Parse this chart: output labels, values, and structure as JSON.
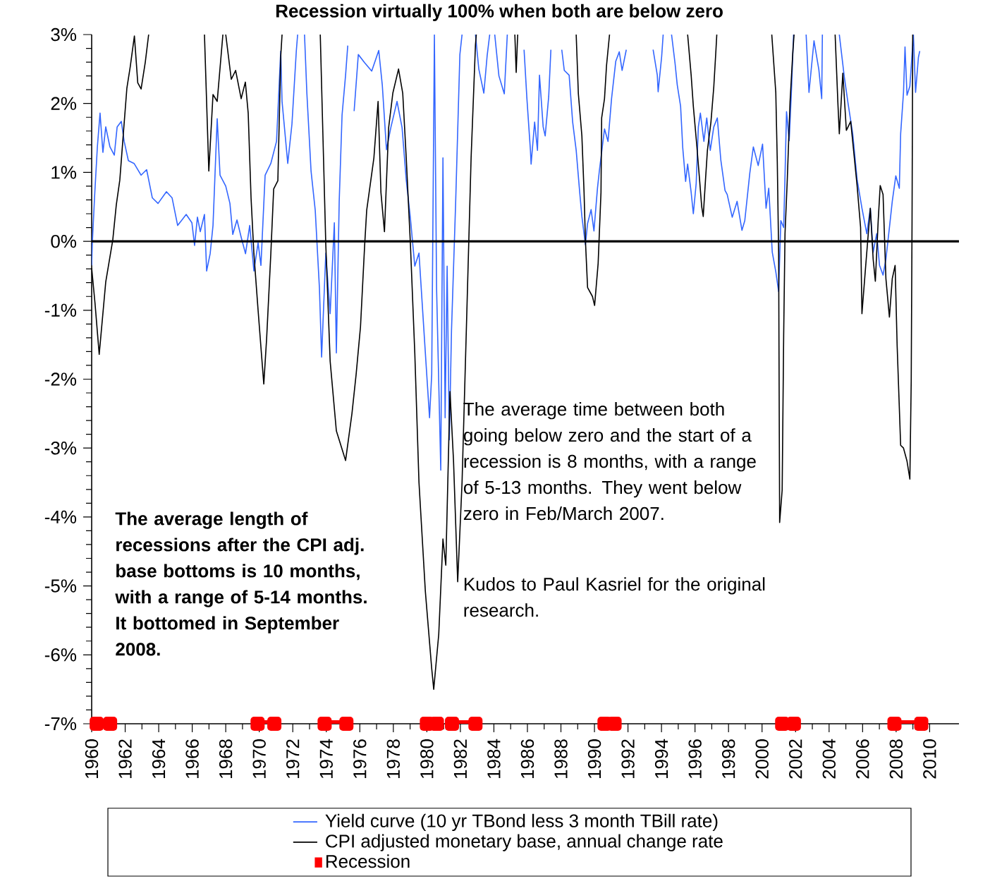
{
  "chart_data": {
    "type": "line",
    "title": "Recession virtually 100% when both are below zero",
    "xlim": [
      1960,
      2011.75
    ],
    "ylim": [
      -7,
      3
    ],
    "xticks": [
      1960,
      1962,
      1964,
      1966,
      1968,
      1970,
      1972,
      1974,
      1976,
      1978,
      1980,
      1982,
      1984,
      1986,
      1988,
      1990,
      1992,
      1994,
      1996,
      1998,
      2000,
      2002,
      2004,
      2006,
      2008,
      2010
    ],
    "yticks": [
      {
        "value": 3,
        "label": "3%"
      },
      {
        "value": 2,
        "label": "2%"
      },
      {
        "value": 1,
        "label": "1%"
      },
      {
        "value": 0,
        "label": "0%"
      },
      {
        "value": -1,
        "label": "-1%"
      },
      {
        "value": -2,
        "label": "-2%"
      },
      {
        "value": -3,
        "label": "-3%"
      },
      {
        "value": -4,
        "label": "-4%"
      },
      {
        "value": -5,
        "label": "-5%"
      },
      {
        "value": -6,
        "label": "-6%"
      },
      {
        "value": -7,
        "label": "-7%"
      }
    ],
    "legend": "bottom",
    "ref_lines": [
      {
        "axis": "y",
        "value": 0,
        "color": "#000000"
      }
    ],
    "annotations": [
      "The average length of recessions after the CPI adj. base bottoms is 10 months, with a range of 5-14 months. It bottomed in September 2008.",
      "The average time between both going below zero and the start of a recession is 8 months, with a range of 5-13 months. They went below zero in Feb/March 2007.",
      "Kudos to Paul Kasriel for the original research."
    ],
    "series": [
      {
        "name": "Yield curve (10 yr TBond less 3 month TBill rate)",
        "type": "line",
        "color": "#3366ff",
        "x": [
          1960.0,
          1960.04,
          1960.17,
          1960.34,
          1960.5,
          1960.67,
          1960.84,
          1961.09,
          1961.35,
          1961.52,
          1961.77,
          1961.94,
          1962.19,
          1962.53,
          1962.95,
          1963.28,
          1963.62,
          1963.96,
          1964.46,
          1964.8,
          1965.13,
          1965.64,
          1965.98,
          1966.14,
          1966.31,
          1966.48,
          1966.73,
          1966.86,
          1967.07,
          1967.24,
          1967.49,
          1967.66,
          1968.0,
          1968.25,
          1968.42,
          1968.67,
          1968.92,
          1969.18,
          1969.43,
          1969.68,
          1969.93,
          1970.1,
          1970.35,
          1970.69,
          1971.03,
          1971.28,
          1971.36,
          1971.7,
          1971.95,
          1972.21,
          1972.29,
          1972.5,
          1972.7,
          1972.84,
          1973.09,
          1973.34,
          1973.59,
          1973.72,
          1973.97,
          1974.23,
          1974.48,
          1974.6,
          1974.77,
          1974.94,
          1975.15,
          1975.28,
          1975.45,
          1975.66,
          1975.91,
          1976.29,
          1976.71,
          1977.13,
          1977.34,
          1977.59,
          1977.85,
          1978.22,
          1978.52,
          1978.77,
          1979.02,
          1979.28,
          1979.53,
          1979.91,
          1980.16,
          1980.29,
          1980.45,
          1980.58,
          1980.83,
          1980.96,
          1981.09,
          1981.21,
          1981.34,
          1981.47,
          1981.72,
          1981.97,
          1982.1,
          1982.5,
          1982.9,
          1983.1,
          1983.4,
          1983.6,
          1983.75,
          1983.9,
          1984.05,
          1984.3,
          1984.62,
          1984.8,
          1985.3,
          1985.8,
          1985.97,
          1986.18,
          1986.22,
          1986.43,
          1986.6,
          1986.72,
          1986.94,
          1987.06,
          1987.27,
          1987.4,
          1987.7,
          1988.05,
          1988.2,
          1988.49,
          1988.7,
          1988.91,
          1989.12,
          1989.25,
          1989.46,
          1989.59,
          1989.8,
          1989.97,
          1990.18,
          1990.3,
          1990.6,
          1990.81,
          1991.02,
          1991.27,
          1991.48,
          1991.65,
          1991.9,
          1992.7,
          1993.5,
          1993.75,
          1993.8,
          1994.01,
          1994.1,
          1994.4,
          1994.6,
          1994.81,
          1994.94,
          1995.14,
          1995.27,
          1995.44,
          1995.56,
          1995.77,
          1995.9,
          1996.07,
          1996.2,
          1996.32,
          1996.53,
          1996.7,
          1996.91,
          1997.12,
          1997.33,
          1997.54,
          1997.79,
          1997.92,
          1998.22,
          1998.51,
          1998.8,
          1998.97,
          1999.27,
          1999.48,
          1999.77,
          2000.03,
          2000.24,
          2000.4,
          2000.61,
          2000.82,
          2000.99,
          2001.12,
          2001.29,
          2001.37,
          2001.46,
          2001.62,
          2001.75,
          2001.88,
          2002.3,
          2002.63,
          2002.8,
          2003.1,
          2003.39,
          2003.56,
          2003.6,
          2004.1,
          2004.61,
          2004.9,
          2005.12,
          2005.41,
          2005.67,
          2005.96,
          2006.25,
          2006.46,
          2006.63,
          2006.84,
          2007.01,
          2007.22,
          2007.39,
          2007.6,
          2007.77,
          2007.98,
          2008.19,
          2008.27,
          2008.44,
          2008.53,
          2008.65,
          2008.82,
          2009.03,
          2009.16,
          2009.33,
          2009.41
        ],
        "values": [
          -0.35,
          -0.02,
          0.63,
          1.37,
          1.86,
          1.29,
          1.66,
          1.37,
          1.25,
          1.66,
          1.74,
          1.45,
          1.17,
          1.13,
          0.96,
          1.04,
          0.63,
          0.55,
          0.72,
          0.63,
          0.23,
          0.39,
          0.27,
          -0.06,
          0.35,
          0.14,
          0.39,
          -0.43,
          -0.18,
          0.23,
          1.78,
          0.96,
          0.8,
          0.55,
          0.1,
          0.31,
          0.06,
          -0.18,
          0.23,
          -0.43,
          -0.02,
          -0.35,
          0.96,
          1.13,
          1.45,
          2.76,
          2.03,
          1.13,
          1.7,
          2.76,
          3.0,
          null,
          3.0,
          2.15,
          1.02,
          0.45,
          -0.68,
          -1.68,
          -0.17,
          -1.05,
          0.27,
          -1.62,
          0.58,
          1.83,
          2.41,
          2.84,
          null,
          1.89,
          2.71,
          2.59,
          2.47,
          2.77,
          2.27,
          1.33,
          1.65,
          2.03,
          1.65,
          0.89,
          0.33,
          -0.36,
          -0.17,
          -1.62,
          -2.56,
          -1.93,
          3.0,
          -0.68,
          -3.32,
          1.21,
          -2.56,
          -0.36,
          -2.88,
          -1.3,
          0.58,
          2.71,
          3.0,
          null,
          3.0,
          2.5,
          2.15,
          2.7,
          3.0,
          null,
          3.0,
          2.4,
          2.14,
          3.0,
          null,
          2.78,
          2.07,
          1.32,
          1.12,
          1.73,
          1.32,
          2.41,
          1.66,
          1.53,
          2.1,
          2.78,
          null,
          2.78,
          2.48,
          2.41,
          1.73,
          1.32,
          0.71,
          0.36,
          -0.05,
          0.26,
          0.46,
          0.15,
          0.77,
          1.04,
          1.63,
          1.45,
          2.07,
          2.61,
          2.75,
          2.48,
          2.78,
          null,
          2.78,
          2.41,
          2.17,
          2.68,
          3.0,
          null,
          3.0,
          2.58,
          2.27,
          1.96,
          1.35,
          0.87,
          1.12,
          0.71,
          0.4,
          0.84,
          1.66,
          1.86,
          1.45,
          1.79,
          1.32,
          1.66,
          1.79,
          1.18,
          0.74,
          0.68,
          0.35,
          0.58,
          0.16,
          0.3,
          0.99,
          1.37,
          1.1,
          1.41,
          0.48,
          0.77,
          -0.16,
          -0.44,
          -0.73,
          0.3,
          0.2,
          0.95,
          1.88,
          1.46,
          2.16,
          3.0,
          null,
          3.0,
          2.16,
          2.91,
          2.49,
          2.07,
          3.0,
          null,
          3.0,
          2.4,
          2.02,
          1.56,
          0.9,
          0.48,
          0.11,
          0.48,
          -0.16,
          0.11,
          -0.35,
          -0.49,
          -0.26,
          0.2,
          0.58,
          0.95,
          0.77,
          1.56,
          2.16,
          2.82,
          2.12,
          2.25,
          3.0,
          2.16,
          2.67,
          2.76
        ]
      },
      {
        "name": "CPI adjusted monetary base, annual change rate",
        "type": "line",
        "color": "#000000",
        "x": [
          1960.0,
          1960.2,
          1960.45,
          1960.84,
          1961.26,
          1961.47,
          1961.68,
          1961.89,
          1962.1,
          1962.3,
          1962.55,
          1962.75,
          1962.95,
          1963.2,
          1963.4,
          1965.0,
          1966.73,
          1966.99,
          1967.24,
          1967.49,
          1967.83,
          1967.9,
          1968.0,
          1968.33,
          1968.59,
          1968.92,
          1969.17,
          1969.34,
          1969.51,
          1969.68,
          1969.93,
          1970.19,
          1970.27,
          1970.44,
          1970.69,
          1970.86,
          1971.11,
          1971.28,
          1971.36,
          1972.5,
          1973.64,
          1973.97,
          1974.23,
          1974.6,
          1975.15,
          1975.53,
          1975.78,
          1976.04,
          1976.29,
          1976.41,
          1976.84,
          1977.09,
          1977.26,
          1977.47,
          1977.72,
          1977.97,
          1978.31,
          1978.56,
          1978.77,
          1979.02,
          1979.28,
          1979.53,
          1979.91,
          1980.29,
          1980.41,
          1980.71,
          1980.96,
          1981.13,
          1981.38,
          1981.59,
          1981.84,
          1982.1,
          1982.39,
          1982.64,
          1982.9,
          1982.95,
          1984.0,
          1985.25,
          1985.33,
          1985.42,
          1987.0,
          1988.91,
          1989.04,
          1989.25,
          1989.38,
          1989.46,
          1989.59,
          1989.88,
          1990.01,
          1990.22,
          1990.39,
          1990.43,
          1990.6,
          1990.72,
          1990.9,
          1993.0,
          1995.56,
          1995.77,
          1995.9,
          1996.11,
          1996.28,
          1996.4,
          1996.49,
          1996.62,
          1996.74,
          1996.95,
          1997.12,
          1997.25,
          1997.3,
          1999.0,
          2000.58,
          2000.82,
          2000.91,
          2000.99,
          2001.03,
          2001.05,
          2001.2,
          2001.29,
          2001.37,
          2001.5,
          2001.67,
          2001.83,
          2001.91,
          2003.0,
          2004.36,
          2004.53,
          2004.61,
          2004.82,
          2005.03,
          2005.29,
          2005.67,
          2005.88,
          2005.96,
          2006.17,
          2006.46,
          2006.63,
          2006.76,
          2006.93,
          2007.05,
          2007.22,
          2007.39,
          2007.6,
          2007.77,
          2007.94,
          2008.06,
          2008.27,
          2008.44,
          2008.65,
          2008.82,
          2008.9,
          2008.95,
          2008.99
        ],
        "values": [
          -0.39,
          -0.9,
          -1.64,
          -0.59,
          0.02,
          0.53,
          0.89,
          1.56,
          2.22,
          2.53,
          2.98,
          2.3,
          2.21,
          2.6,
          3.0,
          null,
          3.0,
          1.02,
          2.13,
          2.03,
          3.0,
          null,
          3.0,
          2.35,
          2.48,
          2.07,
          2.31,
          1.86,
          0.63,
          -0.18,
          -1.0,
          -1.82,
          -2.07,
          -1.41,
          -0.18,
          0.76,
          0.88,
          2.68,
          3.0,
          null,
          3.0,
          -0.05,
          -1.74,
          -2.75,
          -3.18,
          -2.5,
          -1.93,
          -1.24,
          -0.05,
          0.45,
          1.21,
          2.03,
          0.71,
          0.14,
          1.65,
          2.15,
          2.5,
          2.15,
          1.21,
          -0.05,
          -1.62,
          -3.5,
          -5.08,
          -6.2,
          -6.5,
          -5.7,
          -4.32,
          -4.7,
          -2.18,
          -3.18,
          -4.94,
          -3.5,
          -0.99,
          1.21,
          2.85,
          3.0,
          null,
          3.0,
          2.45,
          3.0,
          null,
          3.0,
          2.14,
          1.53,
          0.71,
          0.02,
          -0.67,
          -0.8,
          -0.93,
          -0.32,
          0.71,
          1.79,
          2.07,
          2.55,
          3.0,
          null,
          3.0,
          2.41,
          1.96,
          1.38,
          0.87,
          0.5,
          0.36,
          0.87,
          1.32,
          1.73,
          2.24,
          2.78,
          3.0,
          null,
          3.0,
          2.16,
          1.14,
          -0.16,
          -2.81,
          -4.08,
          -3.61,
          -1.37,
          0.11,
          0.86,
          2.02,
          2.72,
          3.0,
          null,
          3.0,
          1.98,
          1.56,
          2.44,
          1.61,
          1.74,
          0.81,
          0.2,
          -1.05,
          -0.4,
          0.48,
          -0.26,
          -0.58,
          0.3,
          0.81,
          0.68,
          -0.54,
          -1.1,
          -0.54,
          -0.35,
          -1.51,
          -2.96,
          -3.0,
          -3.19,
          -3.45,
          -2.03,
          0.3,
          3.0
        ]
      },
      {
        "name": "Recession",
        "type": "line",
        "color": "#ff0000",
        "marker": "square",
        "x": [
          1960.3,
          1961.1,
          1961.2,
          1969.9,
          1970.9,
          1971.0,
          1973.9,
          1975.2,
          1975.3,
          1980.0,
          1980.6,
          1980.8,
          1981.5,
          1982.9,
          1983.0,
          1990.6,
          1991.2,
          1991.3,
          2001.2,
          2001.9,
          2002.0,
          2007.9,
          2009.5
        ],
        "values": [
          -7,
          -7,
          null,
          -7,
          -7,
          null,
          -7,
          -7,
          null,
          -7,
          -7,
          null,
          -7,
          -7,
          null,
          -7,
          -7,
          null,
          -7,
          -7,
          null,
          -7,
          -7
        ]
      }
    ]
  }
}
